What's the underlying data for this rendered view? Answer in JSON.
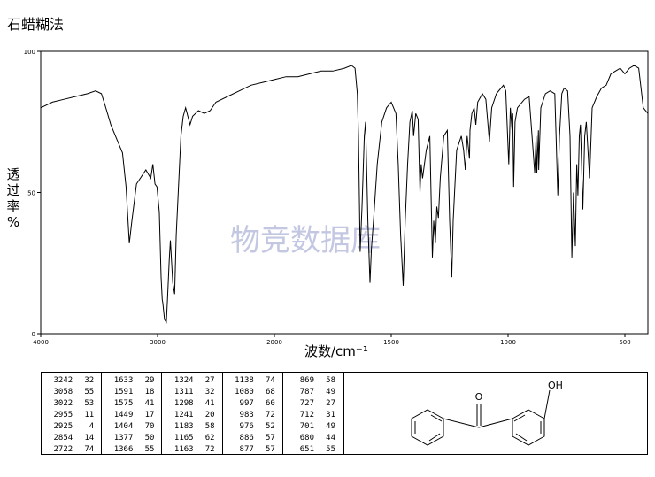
{
  "method": "石蜡糊法",
  "watermark": "物竞数据库",
  "chart_data": {
    "type": "line",
    "title": "",
    "xlabel": "波数/cm⁻¹",
    "ylabel": "透过率%",
    "xlim": [
      4000,
      400
    ],
    "ylim": [
      0,
      100
    ],
    "x_ticks": [
      "4000",
      "3000",
      "2000",
      "1500",
      "1000",
      "500"
    ],
    "y_ticks": [
      "100",
      "50",
      "0"
    ],
    "grid": false,
    "series": [
      {
        "points": [
          [
            4000,
            80
          ],
          [
            3900,
            82
          ],
          [
            3800,
            83
          ],
          [
            3700,
            84
          ],
          [
            3600,
            85
          ],
          [
            3530,
            86
          ],
          [
            3480,
            85
          ],
          [
            3450,
            81
          ],
          [
            3400,
            74
          ],
          [
            3350,
            69
          ],
          [
            3300,
            64
          ],
          [
            3270,
            52
          ],
          [
            3242,
            32
          ],
          [
            3220,
            40
          ],
          [
            3180,
            53
          ],
          [
            3100,
            58
          ],
          [
            3058,
            55
          ],
          [
            3040,
            60
          ],
          [
            3022,
            53
          ],
          [
            3005,
            52
          ],
          [
            2985,
            43
          ],
          [
            2970,
            20
          ],
          [
            2960,
            12
          ],
          [
            2955,
            11
          ],
          [
            2940,
            5
          ],
          [
            2925,
            4
          ],
          [
            2915,
            12
          ],
          [
            2900,
            26
          ],
          [
            2890,
            33
          ],
          [
            2870,
            18
          ],
          [
            2854,
            14
          ],
          [
            2840,
            35
          ],
          [
            2800,
            70
          ],
          [
            2780,
            77
          ],
          [
            2760,
            80
          ],
          [
            2722,
            74
          ],
          [
            2700,
            77
          ],
          [
            2650,
            79
          ],
          [
            2600,
            78
          ],
          [
            2550,
            79
          ],
          [
            2500,
            82
          ],
          [
            2400,
            84
          ],
          [
            2300,
            86
          ],
          [
            2200,
            88
          ],
          [
            2100,
            89
          ],
          [
            2000,
            90
          ],
          [
            1950,
            91
          ],
          [
            1900,
            91
          ],
          [
            1850,
            92
          ],
          [
            1800,
            93
          ],
          [
            1750,
            93
          ],
          [
            1700,
            94
          ],
          [
            1670,
            95
          ],
          [
            1655,
            94
          ],
          [
            1645,
            85
          ],
          [
            1640,
            70
          ],
          [
            1633,
            29
          ],
          [
            1625,
            45
          ],
          [
            1615,
            70
          ],
          [
            1610,
            75
          ],
          [
            1600,
            40
          ],
          [
            1591,
            18
          ],
          [
            1585,
            30
          ],
          [
            1575,
            41
          ],
          [
            1560,
            60
          ],
          [
            1540,
            75
          ],
          [
            1520,
            80
          ],
          [
            1500,
            82
          ],
          [
            1480,
            78
          ],
          [
            1470,
            60
          ],
          [
            1460,
            35
          ],
          [
            1449,
            17
          ],
          [
            1440,
            40
          ],
          [
            1430,
            60
          ],
          [
            1420,
            75
          ],
          [
            1410,
            79
          ],
          [
            1404,
            70
          ],
          [
            1395,
            78
          ],
          [
            1385,
            76
          ],
          [
            1377,
            50
          ],
          [
            1372,
            60
          ],
          [
            1366,
            55
          ],
          [
            1350,
            65
          ],
          [
            1335,
            70
          ],
          [
            1324,
            27
          ],
          [
            1318,
            40
          ],
          [
            1311,
            32
          ],
          [
            1305,
            45
          ],
          [
            1298,
            41
          ],
          [
            1290,
            55
          ],
          [
            1275,
            70
          ],
          [
            1260,
            72
          ],
          [
            1250,
            40
          ],
          [
            1241,
            20
          ],
          [
            1235,
            40
          ],
          [
            1220,
            65
          ],
          [
            1200,
            70
          ],
          [
            1190,
            65
          ],
          [
            1183,
            58
          ],
          [
            1175,
            70
          ],
          [
            1165,
            62
          ],
          [
            1163,
            72
          ],
          [
            1155,
            78
          ],
          [
            1145,
            80
          ],
          [
            1138,
            74
          ],
          [
            1130,
            82
          ],
          [
            1110,
            85
          ],
          [
            1095,
            83
          ],
          [
            1080,
            68
          ],
          [
            1070,
            80
          ],
          [
            1050,
            85
          ],
          [
            1030,
            87
          ],
          [
            1020,
            88
          ],
          [
            1010,
            86
          ],
          [
            997,
            60
          ],
          [
            990,
            80
          ],
          [
            983,
            72
          ],
          [
            980,
            78
          ],
          [
            976,
            52
          ],
          [
            970,
            75
          ],
          [
            960,
            80
          ],
          [
            930,
            83
          ],
          [
            910,
            84
          ],
          [
            886,
            57
          ],
          [
            880,
            70
          ],
          [
            877,
            57
          ],
          [
            870,
            72
          ],
          [
            869,
            58
          ],
          [
            860,
            80
          ],
          [
            840,
            85
          ],
          [
            820,
            86
          ],
          [
            800,
            85
          ],
          [
            787,
            49
          ],
          [
            780,
            70
          ],
          [
            770,
            85
          ],
          [
            760,
            87
          ],
          [
            745,
            86
          ],
          [
            735,
            70
          ],
          [
            727,
            27
          ],
          [
            720,
            50
          ],
          [
            712,
            31
          ],
          [
            706,
            60
          ],
          [
            701,
            49
          ],
          [
            695,
            70
          ],
          [
            690,
            74
          ],
          [
            680,
            44
          ],
          [
            672,
            70
          ],
          [
            665,
            75
          ],
          [
            651,
            55
          ],
          [
            640,
            80
          ],
          [
            620,
            84
          ],
          [
            600,
            87
          ],
          [
            580,
            88
          ],
          [
            560,
            92
          ],
          [
            540,
            93
          ],
          [
            520,
            94
          ],
          [
            500,
            92
          ],
          [
            480,
            94
          ],
          [
            460,
            95
          ],
          [
            440,
            94
          ],
          [
            420,
            80
          ],
          [
            400,
            78
          ]
        ]
      }
    ],
    "peak_table": [
      [
        [
          "3242",
          "32"
        ],
        [
          "3058",
          "55"
        ],
        [
          "3022",
          "53"
        ],
        [
          "2955",
          "11"
        ],
        [
          "2925",
          "4"
        ],
        [
          "2854",
          "14"
        ],
        [
          "2722",
          "74"
        ]
      ],
      [
        [
          "1633",
          "29"
        ],
        [
          "1591",
          "18"
        ],
        [
          "1575",
          "41"
        ],
        [
          "1449",
          "17"
        ],
        [
          "1404",
          "70"
        ],
        [
          "1377",
          "50"
        ],
        [
          "1366",
          "55"
        ]
      ],
      [
        [
          "1324",
          "27"
        ],
        [
          "1311",
          "32"
        ],
        [
          "1298",
          "41"
        ],
        [
          "1241",
          "20"
        ],
        [
          "1183",
          "58"
        ],
        [
          "1165",
          "62"
        ],
        [
          "1163",
          "72"
        ]
      ],
      [
        [
          "1138",
          "74"
        ],
        [
          "1080",
          "68"
        ],
        [
          "997",
          "60"
        ],
        [
          "983",
          "72"
        ],
        [
          "976",
          "52"
        ],
        [
          "886",
          "57"
        ],
        [
          "877",
          "57"
        ]
      ],
      [
        [
          "869",
          "58"
        ],
        [
          "787",
          "49"
        ],
        [
          "727",
          "27"
        ],
        [
          "712",
          "31"
        ],
        [
          "701",
          "49"
        ],
        [
          "680",
          "44"
        ],
        [
          "651",
          "55"
        ]
      ]
    ]
  },
  "structure": {
    "oxygen_label": "O",
    "hydroxyl_label": "OH"
  }
}
